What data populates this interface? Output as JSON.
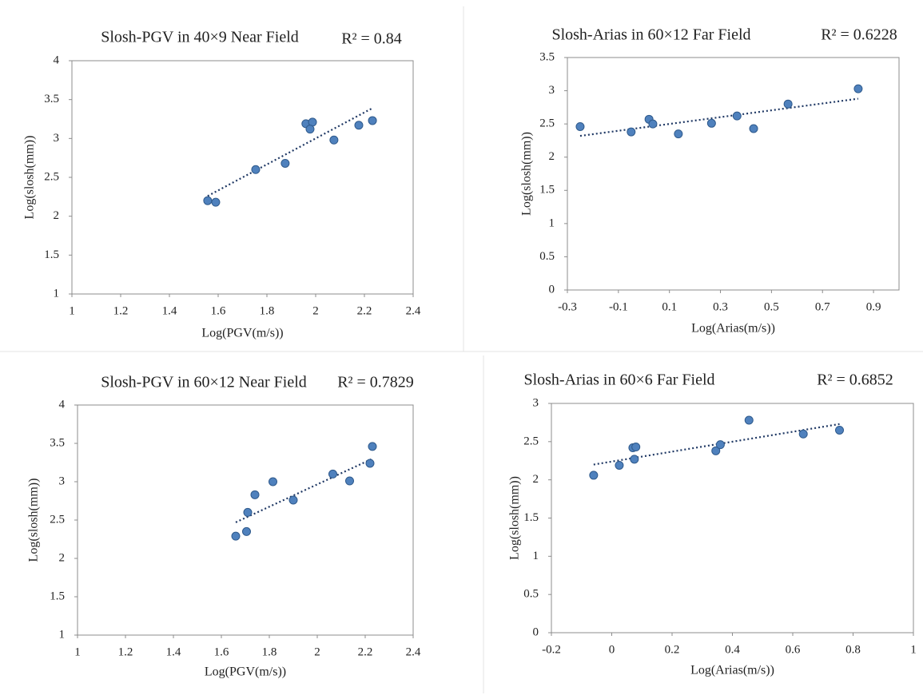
{
  "chart_data": [
    {
      "type": "scatter",
      "title": "Slosh-PGV in 40×9 Near Field",
      "annotation": "R² = 0.84",
      "x_label": "Log(PGV(m/s))",
      "y_label": "Log(slosh(mm))",
      "color": "#4f81bd",
      "x": [
        1.557,
        1.59,
        1.754,
        1.875,
        1.96,
        1.987,
        1.977,
        2.075,
        2.177,
        2.233
      ],
      "values": [
        2.2,
        2.18,
        2.6,
        2.68,
        3.19,
        3.21,
        3.12,
        2.98,
        3.17,
        3.23
      ],
      "trendline": {
        "x": [
          1.557,
          2.233
        ],
        "y": [
          2.26,
          3.39
        ],
        "color": "#1f3864"
      },
      "xlim": [
        1,
        2.4
      ],
      "xticks": [
        1,
        1.2,
        1.4,
        1.6,
        1.8,
        2,
        2.2,
        2.4
      ],
      "ylim": [
        1,
        4
      ],
      "yticks": [
        1,
        1.5,
        2,
        2.5,
        3,
        3.5,
        4
      ]
    },
    {
      "type": "scatter",
      "title": "Slosh-Arias in 60×12 Far Field",
      "annotation": "R² = 0.6228",
      "x_label": "Log(Arias(m/s))",
      "y_label": "Log(slosh(mm))",
      "color": "#4f81bd",
      "x": [
        -0.25,
        -0.05,
        0.02,
        0.035,
        0.135,
        0.265,
        0.365,
        0.43,
        0.565,
        0.84
      ],
      "values": [
        2.46,
        2.38,
        2.57,
        2.5,
        2.35,
        2.51,
        2.62,
        2.43,
        2.8,
        3.03
      ],
      "trendline": {
        "x": [
          -0.25,
          0.84
        ],
        "y": [
          2.32,
          2.88
        ],
        "color": "#1f3864"
      },
      "xlim": [
        -0.3,
        1.0
      ],
      "xticks": [
        -0.3,
        -0.1,
        0.1,
        0.3,
        0.5,
        0.7,
        0.9
      ],
      "ylim": [
        0,
        3.5
      ],
      "yticks": [
        0,
        0.5,
        1,
        1.5,
        2,
        2.5,
        3,
        3.5
      ]
    },
    {
      "type": "scatter",
      "title": "Slosh-PGV in 60×12 Near Field",
      "annotation": "R² = 0.7829",
      "x_label": "Log(PGV(m/s))",
      "y_label": "Log(slosh(mm))",
      "color": "#4f81bd",
      "x": [
        1.66,
        1.705,
        1.71,
        1.74,
        1.815,
        1.9,
        2.065,
        2.135,
        2.22,
        2.23
      ],
      "values": [
        2.29,
        2.35,
        2.6,
        2.83,
        3.0,
        2.76,
        3.1,
        3.01,
        3.24,
        3.46
      ],
      "trendline": {
        "x": [
          1.66,
          2.23
        ],
        "y": [
          2.47,
          3.3
        ],
        "color": "#1f3864"
      },
      "xlim": [
        1,
        2.4
      ],
      "xticks": [
        1,
        1.2,
        1.4,
        1.6,
        1.8,
        2,
        2.2,
        2.4
      ],
      "ylim": [
        1,
        4
      ],
      "yticks": [
        1,
        1.5,
        2,
        2.5,
        3,
        3.5,
        4
      ]
    },
    {
      "type": "scatter",
      "title": "Slosh-Arias in 60×6 Far Field",
      "annotation": "R² = 0.6852",
      "x_label": "Log(Arias(m/s))",
      "y_label": "Log(slosh(mm))",
      "color": "#4f81bd",
      "x": [
        -0.06,
        0.025,
        0.07,
        0.08,
        0.075,
        0.345,
        0.36,
        0.455,
        0.635,
        0.755
      ],
      "values": [
        2.06,
        2.19,
        2.42,
        2.43,
        2.27,
        2.38,
        2.46,
        2.78,
        2.6,
        2.65
      ],
      "trendline": {
        "x": [
          -0.06,
          0.755
        ],
        "y": [
          2.2,
          2.73
        ],
        "color": "#1f3864"
      },
      "xlim": [
        -0.2,
        1
      ],
      "xticks": [
        -0.2,
        0,
        0.2,
        0.4,
        0.6,
        0.8,
        1
      ],
      "ylim": [
        0,
        3
      ],
      "yticks": [
        0,
        0.5,
        1,
        1.5,
        2,
        2.5,
        3
      ]
    }
  ]
}
